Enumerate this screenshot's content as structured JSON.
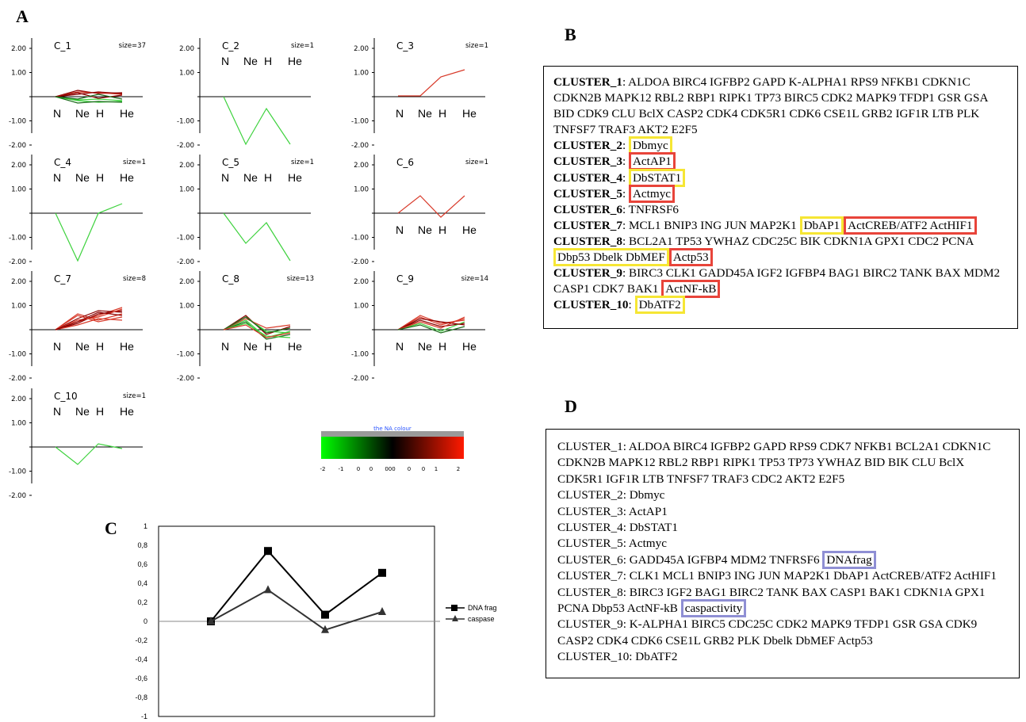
{
  "panel_labels": {
    "a": "A",
    "b": "B",
    "c": "C",
    "d": "D"
  },
  "cluster_plots": {
    "y_ticks": [
      "2.00",
      "1.00",
      "",
      "-1.00",
      "-2.00"
    ],
    "x_labels": [
      "N",
      "Ne",
      "H",
      "He"
    ],
    "items": [
      {
        "name": "C_1",
        "size": "size=37"
      },
      {
        "name": "C_2",
        "size": "size=1"
      },
      {
        "name": "C_3",
        "size": "size=1"
      },
      {
        "name": "C_4",
        "size": "size=1"
      },
      {
        "name": "C_5",
        "size": "size=1"
      },
      {
        "name": "C_6",
        "size": "size=1"
      },
      {
        "name": "C_7",
        "size": "size=8"
      },
      {
        "name": "C_8",
        "size": "size=13"
      },
      {
        "name": "C_9",
        "size": "size=14"
      },
      {
        "name": "C_10",
        "size": "size=1"
      }
    ],
    "colors": {
      "up": "#d83a2a",
      "down": "#3ed23e",
      "dark_red": "#8b0000",
      "dark_green": "#1b6b1b"
    }
  },
  "color_key": {
    "title": "the NA colour",
    "ticks": [
      "-2",
      "-1",
      "0",
      "0",
      "000",
      "0",
      "0",
      "1",
      "2"
    ]
  },
  "box_b": {
    "c1_label": "CLUSTER_1",
    "c1_text": ": ALDOA BIRC4 IGFBP2 GAPD K-ALPHA1 RPS9 NFKB1 CDKN1C CDKN2B MAPK12 RBL2 RBP1 RIPK1 TP73 BIRC5 CDK2 MAPK9 TFDP1 GSR GSA BID CDK9 CLU BclX CASP2 CDK4 CDK5R1 CDK6 CSE1L GRB2 IGF1R LTB PLK TNFSF7 TRAF3 AKT2 E2F5",
    "c2_label": "CLUSTER_2",
    "c2_hl": "Dbmyc",
    "c3_label": "CLUSTER_3",
    "c3_hl": "ActAP1",
    "c4_label": "CLUSTER_4",
    "c4_hl": "DbSTAT1",
    "c5_label": "CLUSTER_5",
    "c5_hl": "Actmyc",
    "c6_label": "CLUSTER_6",
    "c6_text": ": TNFRSF6",
    "c7_label": "CLUSTER_7",
    "c7_text": ": MCL1 BNIP3 ING JUN MAP2K1 ",
    "c7_hl_y": "DbAP1",
    "c7_hl_r": "ActCREB/ATF2 ActHIF1",
    "c8_label": "CLUSTER_8",
    "c8_text": ": BCL2A1 TP53 YWHAZ CDC25C BIK CDKN1A GPX1 CDC2 PCNA",
    "c8_hl_y": "Dbp53 Dbelk DbMEF",
    "c8_hl_r": "Actp53",
    "c9_label": "CLUSTER_9",
    "c9_text": ": BIRC3 CLK1 GADD45A IGF2 IGFBP4 BAG1 BIRC2 TANK BAX MDM2 CASP1 CDK7 BAK1 ",
    "c9_hl_r": "ActNF-kB",
    "c10_label": "CLUSTER_10",
    "c10_hl": "DbATF2"
  },
  "box_d": {
    "l1": "CLUSTER_1: ALDOA BIRC4 IGFBP2 GAPD RPS9 CDK7 NFKB1 BCL2A1 CDKN1C CDKN2B MAPK12 RBL2 RBP1 RIPK1 TP53 TP73 YWHAZ BID BIK CLU BclX CDK5R1 IGF1R LTB TNFSF7 TRAF3 CDC2 AKT2 E2F5",
    "l2": "CLUSTER_2: Dbmyc",
    "l3": "CLUSTER_3: ActAP1",
    "l4": "CLUSTER_4: DbSTAT1",
    "l5": "CLUSTER_5: Actmyc",
    "l6": "CLUSTER_6: GADD45A IGFBP4 MDM2 TNFRSF6",
    "l6_hl": "DNAfrag",
    "l7": "CLUSTER_7: CLK1 MCL1 BNIP3 ING JUN MAP2K1 DbAP1 ActCREB/ATF2 ActHIF1",
    "l8": "CLUSTER_8: BIRC3 IGF2 BAG1 BIRC2 TANK BAX CASP1 BAK1 CDKN1A GPX1 PCNA Dbp53 ActNF-kB",
    "l8_hl": "caspactivity",
    "l9": "CLUSTER_9: K-ALPHA1 BIRC5 CDC25C CDK2 MAPK9 TFDP1 GSR GSA CDK9 CASP2 CDK4 CDK6 CSE1L GRB2 PLK Dbelk DbMEF Actp53",
    "l10": "CLUSTER_10: DbATF2"
  },
  "chart_data": {
    "type": "line",
    "title": "",
    "xlabel": "",
    "ylabel": "",
    "x": [
      1,
      2,
      3,
      4
    ],
    "ylim": [
      -1,
      1
    ],
    "y_ticks": [
      "1",
      "0,8",
      "0,6",
      "0,4",
      "0,2",
      "0",
      "-0,2",
      "-0,4",
      "-0,6",
      "-0,8",
      "-1"
    ],
    "legend_position": "right",
    "series": [
      {
        "name": "DNA frag",
        "values": [
          0,
          0.74,
          0.07,
          0.51
        ],
        "marker": "square",
        "color": "#000000"
      },
      {
        "name": "caspase",
        "values": [
          0,
          0.33,
          -0.09,
          0.1
        ],
        "marker": "triangle",
        "color": "#333333"
      }
    ]
  }
}
